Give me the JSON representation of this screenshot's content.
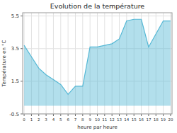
{
  "chart_data": {
    "type": "area",
    "title": "Evolution de la température",
    "x_label": "heure par heure",
    "y_label": "Température en °C",
    "x": [
      0,
      1,
      2,
      3,
      4,
      5,
      6,
      7,
      8,
      9,
      10,
      11,
      12,
      13,
      14,
      15,
      16,
      17,
      18,
      19,
      20
    ],
    "values": [
      3.7,
      3.0,
      2.3,
      1.9,
      1.6,
      1.3,
      0.7,
      1.2,
      1.2,
      3.6,
      3.6,
      3.7,
      3.8,
      4.1,
      5.2,
      5.3,
      5.3,
      3.6,
      4.4,
      5.2,
      5.2
    ],
    "xlim": [
      -0.2,
      20.2
    ],
    "ylim": [
      -0.5,
      5.7
    ],
    "xticks": [
      0,
      1,
      2,
      3,
      4,
      5,
      6,
      7,
      8,
      9,
      10,
      11,
      12,
      13,
      14,
      15,
      16,
      17,
      18,
      19,
      20
    ],
    "yticks": [
      -0.5,
      1.5,
      3.5,
      5.5
    ],
    "color": "#55b8d5",
    "grid": true
  }
}
